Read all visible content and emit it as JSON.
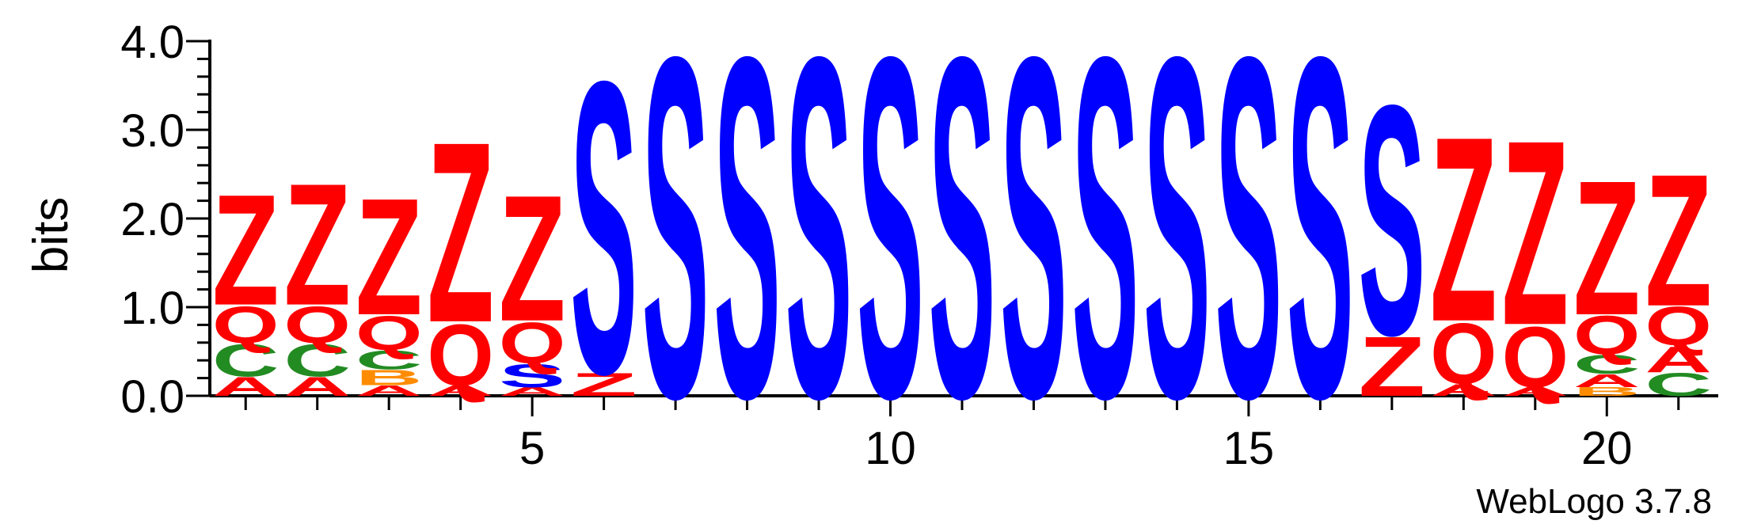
{
  "chart_data": {
    "type": "sequence-logo",
    "ylabel": "bits",
    "ylim": [
      0,
      4.0
    ],
    "y_ticks": [
      "0.0",
      "1.0",
      "2.0",
      "3.0",
      "4.0"
    ],
    "x_ticks": [
      5,
      10,
      15,
      20
    ],
    "footer": "WebLogo 3.7.8",
    "colors": {
      "Z": "#ff0000",
      "Q": "#ff0000",
      "S": "#0000ff",
      "C": "#228b22",
      "A": "#ff0000",
      "B": "#ff8c00"
    },
    "positions": [
      {
        "pos": 1,
        "stack": [
          {
            "l": "A",
            "h": 0.22
          },
          {
            "l": "C",
            "h": 0.38
          },
          {
            "l": "Q",
            "h": 0.43
          },
          {
            "l": "Z",
            "h": 1.3
          }
        ]
      },
      {
        "pos": 2,
        "stack": [
          {
            "l": "A",
            "h": 0.22
          },
          {
            "l": "C",
            "h": 0.38
          },
          {
            "l": "Q",
            "h": 0.43
          },
          {
            "l": "Z",
            "h": 1.43
          }
        ]
      },
      {
        "pos": 3,
        "stack": [
          {
            "l": "A",
            "h": 0.12
          },
          {
            "l": "B",
            "h": 0.18
          },
          {
            "l": "C",
            "h": 0.22
          },
          {
            "l": "Q",
            "h": 0.4
          },
          {
            "l": "Z",
            "h": 1.37
          }
        ]
      },
      {
        "pos": 4,
        "stack": [
          {
            "l": "A",
            "h": 0.12
          },
          {
            "l": "Q",
            "h": 0.72
          },
          {
            "l": "Z",
            "h": 2.12
          }
        ]
      },
      {
        "pos": 5,
        "stack": [
          {
            "l": "A",
            "h": 0.1
          },
          {
            "l": "S",
            "h": 0.27
          },
          {
            "l": "Q",
            "h": 0.48
          },
          {
            "l": "Z",
            "h": 1.48
          }
        ]
      },
      {
        "pos": 6,
        "stack": [
          {
            "l": "Z",
            "h": 0.27
          },
          {
            "l": "S",
            "h": 3.43
          }
        ]
      },
      {
        "pos": 7,
        "stack": [
          {
            "l": "S",
            "h": 4.0
          }
        ]
      },
      {
        "pos": 8,
        "stack": [
          {
            "l": "S",
            "h": 4.0
          }
        ]
      },
      {
        "pos": 9,
        "stack": [
          {
            "l": "S",
            "h": 4.0
          }
        ]
      },
      {
        "pos": 10,
        "stack": [
          {
            "l": "S",
            "h": 4.0
          }
        ]
      },
      {
        "pos": 11,
        "stack": [
          {
            "l": "S",
            "h": 4.0
          }
        ]
      },
      {
        "pos": 12,
        "stack": [
          {
            "l": "S",
            "h": 4.0
          }
        ]
      },
      {
        "pos": 13,
        "stack": [
          {
            "l": "S",
            "h": 4.0
          }
        ]
      },
      {
        "pos": 14,
        "stack": [
          {
            "l": "S",
            "h": 4.0
          }
        ]
      },
      {
        "pos": 15,
        "stack": [
          {
            "l": "S",
            "h": 4.0
          }
        ]
      },
      {
        "pos": 16,
        "stack": [
          {
            "l": "S",
            "h": 4.0
          }
        ]
      },
      {
        "pos": 17,
        "stack": [
          {
            "l": "Z",
            "h": 0.7
          },
          {
            "l": "S",
            "h": 2.7
          }
        ]
      },
      {
        "pos": 18,
        "stack": [
          {
            "l": "A",
            "h": 0.14
          },
          {
            "l": "Q",
            "h": 0.71
          },
          {
            "l": "Z",
            "h": 2.17
          }
        ]
      },
      {
        "pos": 19,
        "stack": [
          {
            "l": "A",
            "h": 0.1
          },
          {
            "l": "Q",
            "h": 0.71
          },
          {
            "l": "Z",
            "h": 2.17
          }
        ]
      },
      {
        "pos": 20,
        "stack": [
          {
            "l": "B",
            "h": 0.1
          },
          {
            "l": "A",
            "h": 0.15
          },
          {
            "l": "C",
            "h": 0.22
          },
          {
            "l": "Q",
            "h": 0.45
          },
          {
            "l": "Z",
            "h": 1.58
          }
        ]
      },
      {
        "pos": 21,
        "stack": [
          {
            "l": "C",
            "h": 0.27
          },
          {
            "l": "A",
            "h": 0.3
          },
          {
            "l": "Q",
            "h": 0.45
          },
          {
            "l": "Z",
            "h": 1.55
          }
        ]
      }
    ]
  }
}
